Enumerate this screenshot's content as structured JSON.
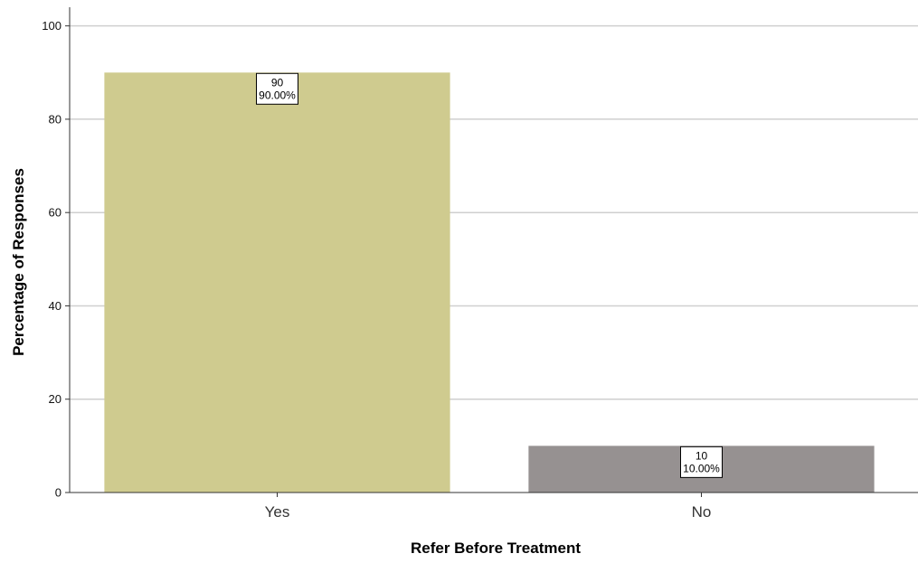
{
  "chart_data": {
    "type": "bar",
    "title": "",
    "xlabel": "Refer Before Treatment",
    "ylabel": "Percentage of Responses",
    "categories": [
      "Yes",
      "No"
    ],
    "values": [
      90,
      10
    ],
    "data_labels": [
      {
        "count": "90",
        "percent": "90.00%"
      },
      {
        "count": "10",
        "percent": "10.00%"
      }
    ],
    "bar_colors": [
      "#CFCB8F",
      "#969191"
    ],
    "ylim": [
      0,
      104
    ],
    "yticks": [
      0,
      20,
      40,
      60,
      80,
      100
    ],
    "grid": true
  },
  "colors": {
    "grid": "#CFCFCF",
    "axis": "#333333",
    "text": "#000000",
    "tick_text": "#111111",
    "category_text": "#333333"
  }
}
